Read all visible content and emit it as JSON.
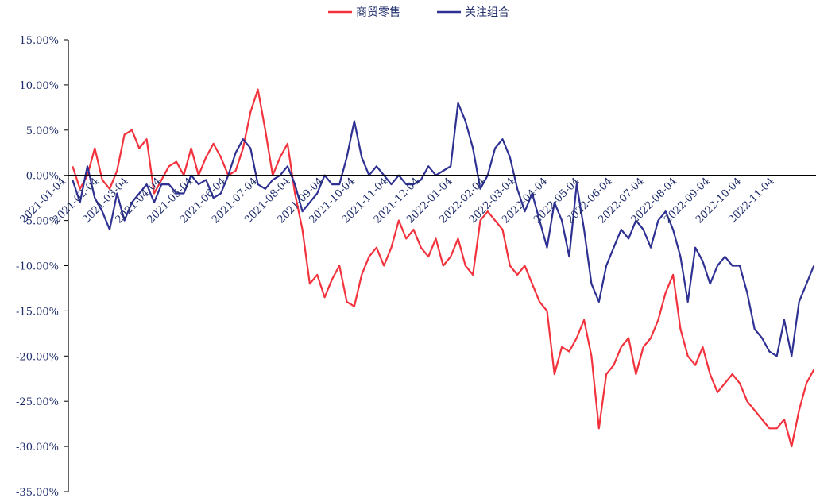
{
  "chart_data": {
    "type": "line",
    "title": "",
    "xlabel": "",
    "ylabel": "",
    "ylim": [
      -0.35,
      0.15
    ],
    "y_ticks": [
      0.15,
      0.1,
      0.05,
      0.0,
      -0.05,
      -0.1,
      -0.15,
      -0.2,
      -0.25,
      -0.3,
      -0.35
    ],
    "y_tick_labels": [
      "15.00%",
      "10.00%",
      "5.00%",
      "0.00%",
      "-5.00%",
      "-10.00%",
      "-15.00%",
      "-20.00%",
      "-25.00%",
      "-30.00%",
      "-35.00%"
    ],
    "x_range": [
      "2020-12-31",
      "2022-12-07"
    ],
    "x_tick_labels": [
      "2021-01-04",
      "2021-02-04",
      "2021-03-04",
      "2021-04-04",
      "2021-05-04",
      "2021-06-04",
      "2021-07-04",
      "2021-08-04",
      "2021-09-04",
      "2021-10-04",
      "2021-11-04",
      "2021-12-04",
      "2022-01-04",
      "2022-02-04",
      "2022-03-04",
      "2022-04-04",
      "2022-05-04",
      "2022-06-04",
      "2022-07-04",
      "2022-08-04",
      "2022-09-04",
      "2022-10-04",
      "2022-11-04"
    ],
    "legend_position": "top-center",
    "grid": false,
    "series": [
      {
        "name": "商贸零售",
        "color": "#f2323c",
        "x": [
          "2021-01-04",
          "2021-01-11",
          "2021-01-18",
          "2021-01-25",
          "2021-02-01",
          "2021-02-08",
          "2021-02-15",
          "2021-02-22",
          "2021-03-01",
          "2021-03-08",
          "2021-03-15",
          "2021-03-22",
          "2021-03-29",
          "2021-04-05",
          "2021-04-12",
          "2021-04-19",
          "2021-04-26",
          "2021-05-03",
          "2021-05-10",
          "2021-05-17",
          "2021-05-24",
          "2021-05-31",
          "2021-06-07",
          "2021-06-14",
          "2021-06-21",
          "2021-06-28",
          "2021-07-05",
          "2021-07-12",
          "2021-07-19",
          "2021-07-26",
          "2021-08-02",
          "2021-08-09",
          "2021-08-16",
          "2021-08-23",
          "2021-08-30",
          "2021-09-06",
          "2021-09-13",
          "2021-09-20",
          "2021-09-27",
          "2021-10-04",
          "2021-10-11",
          "2021-10-18",
          "2021-10-25",
          "2021-11-01",
          "2021-11-08",
          "2021-11-15",
          "2021-11-22",
          "2021-11-29",
          "2021-12-06",
          "2021-12-13",
          "2021-12-20",
          "2021-12-27",
          "2022-01-03",
          "2022-01-10",
          "2022-01-17",
          "2022-01-24",
          "2022-01-31",
          "2022-02-07",
          "2022-02-14",
          "2022-02-21",
          "2022-02-28",
          "2022-03-07",
          "2022-03-14",
          "2022-03-21",
          "2022-03-28",
          "2022-04-04",
          "2022-04-11",
          "2022-04-18",
          "2022-04-25",
          "2022-05-02",
          "2022-05-09",
          "2022-05-16",
          "2022-05-23",
          "2022-05-30",
          "2022-06-06",
          "2022-06-13",
          "2022-06-20",
          "2022-06-27",
          "2022-07-04",
          "2022-07-11",
          "2022-07-18",
          "2022-07-25",
          "2022-08-01",
          "2022-08-08",
          "2022-08-15",
          "2022-08-22",
          "2022-08-29",
          "2022-09-05",
          "2022-09-12",
          "2022-09-19",
          "2022-09-26",
          "2022-10-03",
          "2022-10-10",
          "2022-10-17",
          "2022-10-24",
          "2022-10-31",
          "2022-11-07",
          "2022-11-14",
          "2022-11-21",
          "2022-11-28",
          "2022-12-05"
        ],
        "values": [
          0.01,
          -0.015,
          0.0,
          0.03,
          -0.005,
          -0.015,
          0.005,
          0.045,
          0.05,
          0.03,
          0.04,
          -0.02,
          -0.005,
          0.01,
          0.015,
          0.0,
          0.03,
          0.0,
          0.02,
          0.035,
          0.02,
          0.0,
          0.005,
          0.03,
          0.07,
          0.095,
          0.05,
          0.0,
          0.02,
          0.035,
          -0.02,
          -0.06,
          -0.12,
          -0.11,
          -0.135,
          -0.115,
          -0.1,
          -0.14,
          -0.145,
          -0.11,
          -0.09,
          -0.08,
          -0.1,
          -0.08,
          -0.05,
          -0.07,
          -0.06,
          -0.08,
          -0.09,
          -0.07,
          -0.1,
          -0.09,
          -0.07,
          -0.1,
          -0.11,
          -0.05,
          -0.04,
          -0.05,
          -0.06,
          -0.1,
          -0.11,
          -0.1,
          -0.12,
          -0.14,
          -0.15,
          -0.22,
          -0.19,
          -0.195,
          -0.18,
          -0.16,
          -0.2,
          -0.28,
          -0.22,
          -0.21,
          -0.19,
          -0.18,
          -0.22,
          -0.19,
          -0.18,
          -0.16,
          -0.13,
          -0.11,
          -0.17,
          -0.2,
          -0.21,
          -0.19,
          -0.22,
          -0.24,
          -0.23,
          -0.22,
          -0.23,
          -0.25,
          -0.26,
          -0.27,
          -0.28,
          -0.28,
          -0.27,
          -0.3,
          -0.26,
          -0.23,
          -0.215
        ]
      },
      {
        "name": "关注组合",
        "color": "#2e3192",
        "x": [
          "2021-01-04",
          "2021-01-11",
          "2021-01-18",
          "2021-01-25",
          "2021-02-01",
          "2021-02-08",
          "2021-02-15",
          "2021-02-22",
          "2021-03-01",
          "2021-03-08",
          "2021-03-15",
          "2021-03-22",
          "2021-03-29",
          "2021-04-05",
          "2021-04-12",
          "2021-04-19",
          "2021-04-26",
          "2021-05-03",
          "2021-05-10",
          "2021-05-17",
          "2021-05-24",
          "2021-05-31",
          "2021-06-07",
          "2021-06-14",
          "2021-06-21",
          "2021-06-28",
          "2021-07-05",
          "2021-07-12",
          "2021-07-19",
          "2021-07-26",
          "2021-08-02",
          "2021-08-09",
          "2021-08-16",
          "2021-08-23",
          "2021-08-30",
          "2021-09-06",
          "2021-09-13",
          "2021-09-20",
          "2021-09-27",
          "2021-10-04",
          "2021-10-11",
          "2021-10-18",
          "2021-10-25",
          "2021-11-01",
          "2021-11-08",
          "2021-11-15",
          "2021-11-22",
          "2021-11-29",
          "2021-12-06",
          "2021-12-13",
          "2021-12-20",
          "2021-12-27",
          "2022-01-03",
          "2022-01-10",
          "2022-01-17",
          "2022-01-24",
          "2022-01-31",
          "2022-02-07",
          "2022-02-14",
          "2022-02-21",
          "2022-02-28",
          "2022-03-07",
          "2022-03-14",
          "2022-03-21",
          "2022-03-28",
          "2022-04-04",
          "2022-04-11",
          "2022-04-18",
          "2022-04-25",
          "2022-05-02",
          "2022-05-09",
          "2022-05-16",
          "2022-05-23",
          "2022-05-30",
          "2022-06-06",
          "2022-06-13",
          "2022-06-20",
          "2022-06-27",
          "2022-07-04",
          "2022-07-11",
          "2022-07-18",
          "2022-07-25",
          "2022-08-01",
          "2022-08-08",
          "2022-08-15",
          "2022-08-22",
          "2022-08-29",
          "2022-09-05",
          "2022-09-12",
          "2022-09-19",
          "2022-09-26",
          "2022-10-03",
          "2022-10-10",
          "2022-10-17",
          "2022-10-24",
          "2022-10-31",
          "2022-11-07",
          "2022-11-14",
          "2022-11-21",
          "2022-11-28",
          "2022-12-05"
        ],
        "values": [
          -0.005,
          -0.03,
          0.01,
          -0.025,
          -0.04,
          -0.06,
          -0.02,
          -0.05,
          -0.03,
          -0.02,
          -0.01,
          -0.03,
          -0.01,
          -0.01,
          -0.02,
          -0.02,
          0.0,
          -0.01,
          -0.005,
          -0.025,
          -0.02,
          0.0,
          0.025,
          0.04,
          0.03,
          -0.01,
          -0.015,
          -0.005,
          0.0,
          0.01,
          -0.01,
          -0.04,
          -0.03,
          -0.02,
          0.0,
          -0.01,
          -0.01,
          0.02,
          0.06,
          0.02,
          0.0,
          0.01,
          0.0,
          -0.01,
          0.0,
          -0.01,
          -0.01,
          -0.005,
          0.01,
          0.0,
          0.005,
          0.01,
          0.08,
          0.06,
          0.03,
          -0.015,
          0.0,
          0.03,
          0.04,
          0.02,
          -0.015,
          -0.04,
          -0.02,
          -0.05,
          -0.08,
          -0.03,
          -0.05,
          -0.09,
          -0.01,
          -0.06,
          -0.12,
          -0.14,
          -0.1,
          -0.08,
          -0.06,
          -0.07,
          -0.05,
          -0.06,
          -0.08,
          -0.05,
          -0.04,
          -0.06,
          -0.09,
          -0.14,
          -0.08,
          -0.095,
          -0.12,
          -0.1,
          -0.09,
          -0.1,
          -0.1,
          -0.13,
          -0.17,
          -0.18,
          -0.195,
          -0.2,
          -0.16,
          -0.2,
          -0.14,
          -0.12,
          -0.1
        ]
      }
    ]
  }
}
